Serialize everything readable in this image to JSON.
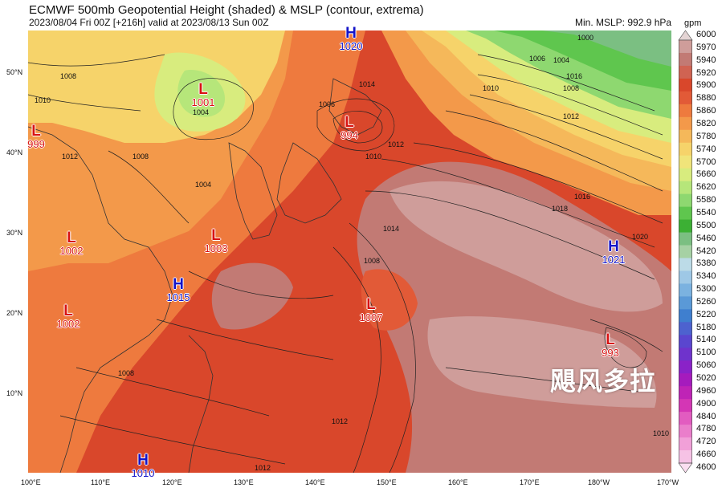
{
  "header": {
    "title": "ECMWF 500mb Geopotential Height (shaded) & MSLP (contour, extrema)",
    "subtitle": "2023/08/04 Fri 00Z [+216h] valid at 2023/08/13 Sun 00Z",
    "min_mslp": "Min. MSLP: 992.9 hPa",
    "unit": "gpm"
  },
  "watermark": "飓风多拉",
  "axes": {
    "lat_labels": [
      "50°N",
      "40°N",
      "30°N",
      "20°N",
      "10°N"
    ],
    "lon_labels": [
      "100°E",
      "110°E",
      "120°E",
      "130°E",
      "140°E",
      "150°E",
      "160°E",
      "170°E",
      "180°W",
      "170°W"
    ]
  },
  "colorbar": {
    "levels": [
      "6000",
      "5970",
      "5940",
      "5920",
      "5900",
      "5880",
      "5860",
      "5820",
      "5780",
      "5740",
      "5700",
      "5660",
      "5620",
      "5580",
      "5540",
      "5500",
      "5460",
      "5420",
      "5380",
      "5340",
      "5300",
      "5260",
      "5220",
      "5180",
      "5140",
      "5100",
      "5060",
      "5020",
      "4960",
      "4900",
      "4840",
      "4780",
      "4720",
      "4660",
      "4600"
    ],
    "colors": [
      "#e4d4d4",
      "#cf9d9a",
      "#c27a74",
      "#d06352",
      "#d9472b",
      "#e25a37",
      "#ee7a3e",
      "#f3994a",
      "#f5b85a",
      "#f6d36a",
      "#f0e47a",
      "#d8ec7e",
      "#b6e67a",
      "#8ed870",
      "#5fc64e",
      "#3cb034",
      "#7bbf82",
      "#a6d1a4",
      "#bcdbe7",
      "#9ec8e6",
      "#7bb2e0",
      "#5a99d7",
      "#3f7fcf",
      "#4d62cf",
      "#5a46cf",
      "#6f33cc",
      "#8a22c8",
      "#a51bbd",
      "#bf23b6",
      "#d436b5",
      "#e25cc0",
      "#ea7ecb",
      "#f1a0d8",
      "#f6c2e5",
      "#fadef0"
    ]
  },
  "pressure_systems": [
    {
      "type": "L",
      "value": "1001"
    },
    {
      "type": "H",
      "value": "1020"
    },
    {
      "type": "L",
      "value": "994"
    },
    {
      "type": "L",
      "value": "999"
    },
    {
      "type": "L",
      "value": "1002"
    },
    {
      "type": "L",
      "value": "1003"
    },
    {
      "type": "H",
      "value": "1015"
    },
    {
      "type": "L",
      "value": "1002"
    },
    {
      "type": "L",
      "value": "1007"
    },
    {
      "type": "H",
      "value": "1021"
    },
    {
      "type": "L",
      "value": "993"
    },
    {
      "type": "H",
      "value": "1010"
    }
  ],
  "isobar_labels": [
    "1000",
    "1006",
    "1004",
    "1010",
    "1008",
    "1012",
    "1016",
    "1018",
    "1020",
    "1014",
    "1012",
    "1010",
    "1014",
    "1008",
    "1006",
    "1004",
    "1008",
    "1012",
    "1010",
    "1008",
    "1004",
    "1012",
    "1016",
    "1008",
    "1012",
    "1010"
  ]
}
